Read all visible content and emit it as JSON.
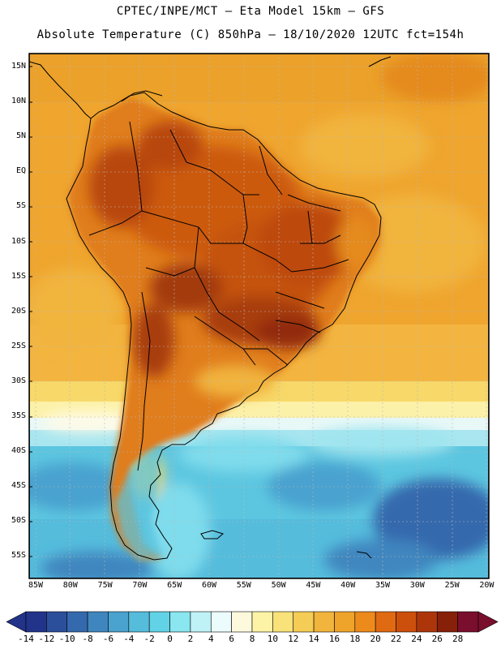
{
  "header": {
    "line1": "CPTEC/INPE/MCT –  Eta Model 15km – GFS",
    "line2": "Absolute Temperature (C) 850hPa – 18/10/2020 12UTC fct=154h"
  },
  "map": {
    "lat_ticks": [
      "15N",
      "10N",
      "5N",
      "EQ",
      "5S",
      "10S",
      "15S",
      "20S",
      "25S",
      "30S",
      "35S",
      "40S",
      "45S",
      "50S",
      "55S"
    ],
    "lon_ticks": [
      "85W",
      "80W",
      "75W",
      "70W",
      "65W",
      "60W",
      "55W",
      "50W",
      "45W",
      "40W",
      "35W",
      "30W",
      "25W",
      "20W"
    ]
  },
  "colorbar": {
    "labels": [
      "-14",
      "-12",
      "-10",
      "-8",
      "-6",
      "-4",
      "-2",
      "0",
      "2",
      "4",
      "6",
      "8",
      "10",
      "12",
      "14",
      "16",
      "18",
      "20",
      "22",
      "24",
      "26",
      "28"
    ],
    "colors": [
      "#22338a",
      "#2c4f9b",
      "#3569ad",
      "#3f86bf",
      "#4aa2cf",
      "#55bcdc",
      "#62d2e6",
      "#8ae6ef",
      "#bff2f6",
      "#ecfbfb",
      "#fdf9dc",
      "#fcf3a6",
      "#f9e27a",
      "#f5cc55",
      "#f1b43d",
      "#eea32a",
      "#ec8a1c",
      "#df6a12",
      "#cc4f0c",
      "#ac360a",
      "#862008",
      "#7a0f2d"
    ]
  },
  "legend_colors": {
    "ocean_warm": "#efa52e",
    "land_hot": "#b5470d",
    "cold": "#5cc6e0"
  }
}
